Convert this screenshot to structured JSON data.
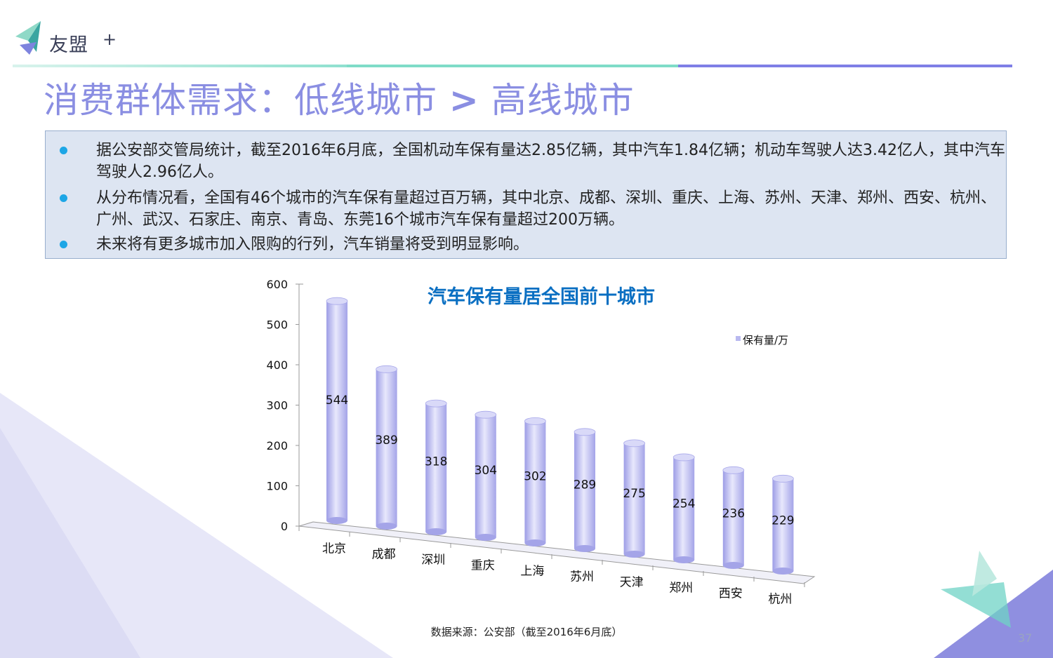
{
  "brand": {
    "name": "友盟",
    "plus": "+"
  },
  "page": {
    "title_left": "消费群体需求：低线城市",
    "title_sep": ">",
    "title_right": "高线城市",
    "page_number": "37",
    "source": "数据来源：公安部（截至2016年6月底）"
  },
  "bullets": [
    {
      "text": "据公安部交管局统计，截至2016年6月底，全国机动车保有量达2.85亿辆，其中汽车1.84亿辆；机动车驾驶人达3.42亿人，其中汽车驾驶人2.96亿人。"
    },
    {
      "text": "从分布情况看，全国有46个城市的汽车保有量超过百万辆，其中北京、成都、深圳、重庆、上海、苏州、天津、郑州、西安、杭州、广州、武汉、石家庄、南京、青岛、东莞16个城市汽车保有量超过200万辆。"
    },
    {
      "text": "未来将有更多城市加入限购的行列，汽车销量将受到明显影响。"
    }
  ],
  "colors": {
    "title": "#8a8ee2",
    "chart_title": "#0a6fc2",
    "bullet_dot": "#1da6e6",
    "textbox_bg": "#dde5f2",
    "bar": "#b9b9f0",
    "rule_teal": "#7fdcc8",
    "rule_indigo": "#7f7fe6"
  },
  "chart_data": {
    "type": "bar",
    "style": "3d-cylinder",
    "title": "汽车保有量居全国前十城市",
    "categories": [
      "北京",
      "成都",
      "深圳",
      "重庆",
      "上海",
      "苏州",
      "天津",
      "郑州",
      "西安",
      "杭州"
    ],
    "series": [
      {
        "name": "保有量/万",
        "values": [
          544,
          389,
          318,
          304,
          302,
          289,
          275,
          254,
          236,
          229
        ]
      }
    ],
    "ylim": [
      0,
      600
    ],
    "yticks": [
      0,
      100,
      200,
      300,
      400,
      500,
      600
    ],
    "data_labels": true,
    "legend": "top-right",
    "grid": false
  }
}
